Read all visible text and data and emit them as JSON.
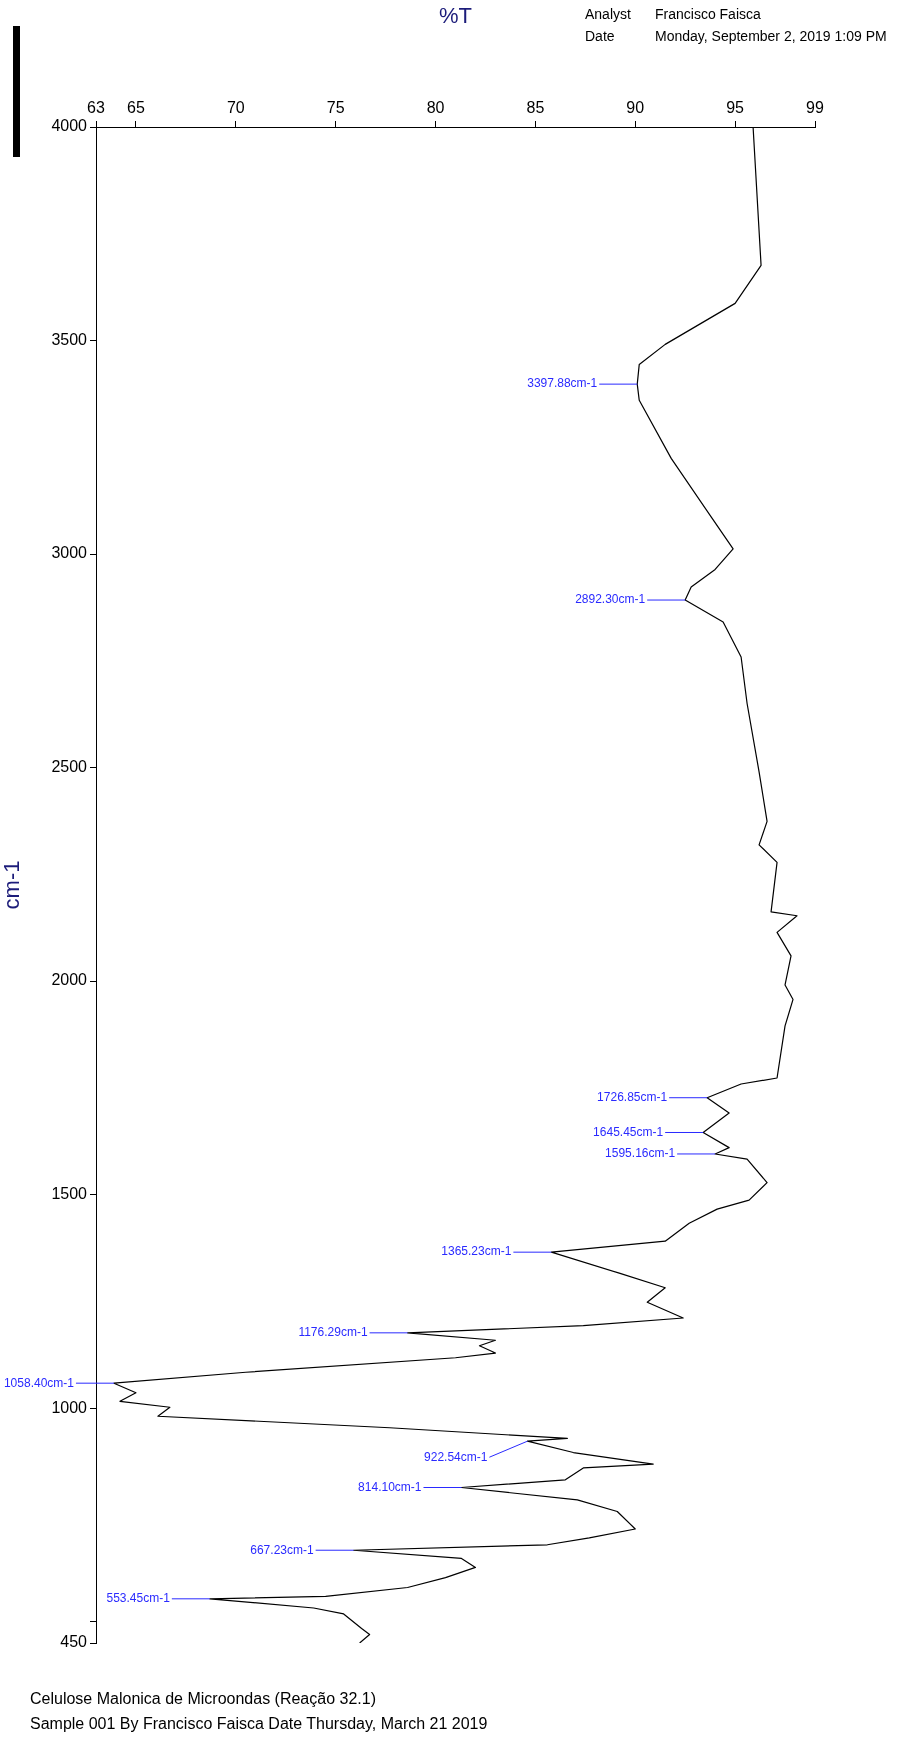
{
  "chart_data": {
    "type": "line",
    "xlabel": "%T",
    "ylabel": "cm-1",
    "x": [
      95.9,
      96.3,
      95.0,
      91.5,
      90.2,
      90.1,
      90.2,
      91.8,
      93.8,
      94.9,
      94.0,
      92.8,
      92.5,
      94.4,
      95.3,
      95.6,
      96.2,
      96.6,
      96.2,
      97.1,
      96.8,
      98.1,
      97.1,
      97.8,
      97.5,
      97.9,
      97.5,
      97.1,
      95.3,
      93.6,
      94.7,
      93.4,
      94.7,
      94.0,
      95.6,
      96.6,
      95.7,
      94.1,
      92.7,
      91.5,
      85.8,
      89.2,
      91.5,
      90.6,
      92.4,
      87.4,
      78.6,
      83.0,
      82.2,
      83.0,
      81.0,
      70.5,
      63.9,
      65.0,
      64.2,
      66.7,
      66.1,
      77.7,
      86.6,
      84.6,
      86.9,
      90.9,
      87.4,
      86.5,
      81.3,
      87.1,
      89.1,
      90.0,
      87.7,
      85.6,
      75.9,
      81.3,
      82.0,
      80.5,
      78.6,
      74.5,
      68.7,
      73.9,
      75.4,
      76.3,
      76.7,
      76.2
    ],
    "values": [
      4000,
      3676,
      3587,
      3491,
      3444,
      3397.88,
      3360,
      3224,
      3087,
      3012,
      2964,
      2923,
      2892.3,
      2841,
      2759,
      2650,
      2490,
      2374,
      2319,
      2278,
      2162,
      2153,
      2114,
      2059,
      1991,
      1957,
      1895,
      1773,
      1759,
      1726.85,
      1691,
      1645.45,
      1610,
      1595.16,
      1583,
      1528,
      1487,
      1466,
      1433,
      1391,
      1365.23,
      1316,
      1282,
      1248,
      1211,
      1193,
      1176.29,
      1159,
      1146,
      1129,
      1118,
      1084,
      1058.4,
      1036,
      1016,
      1002,
      981,
      954,
      929,
      922.54,
      896,
      869,
      860,
      832,
      814.1,
      785,
      758,
      717,
      696,
      680,
      667.23,
      648,
      627,
      603,
      580,
      559,
      553.45,
      532,
      518,
      484,
      470,
      450
    ],
    "color": "#000000",
    "xlim": [
      63,
      99
    ],
    "xticks": [
      63,
      65,
      70,
      75,
      80,
      85,
      90,
      95,
      99
    ],
    "ylim": [
      450,
      4000
    ],
    "yticks": [
      4000,
      3500,
      3000,
      2500,
      2000,
      1500,
      1000,
      {
        "value": 500,
        "label": null
      },
      450
    ],
    "grid": false,
    "legend": false,
    "marker": "none",
    "line_style": "solid",
    "annotations": [
      "Analyst",
      "Francisco Faisca",
      "Date",
      "Monday, September 2, 2019 1:09 PM",
      "Celulose Malonica de Microondas (Reação 32.1)",
      "Sample 001 By Francisco Faisca Date Thursday, March 21 2019",
      {
        "text": "3397.88cm-1",
        "x": 90.1,
        "y": 3397.88
      },
      {
        "text": "2892.30cm-1",
        "x": 92.5,
        "y": 2892.3
      },
      {
        "text": "1726.85cm-1",
        "x": 93.6,
        "y": 1726.85
      },
      {
        "text": "1645.45cm-1",
        "x": 93.4,
        "y": 1645.45
      },
      {
        "text": "1595.16cm-1",
        "x": 94.0,
        "y": 1595.16
      },
      {
        "text": "1365.23cm-1",
        "x": 85.8,
        "y": 1365.23
      },
      {
        "text": "1176.29cm-1",
        "x": 78.6,
        "y": 1176.29
      },
      {
        "text": "1058.40cm-1",
        "x": 63.9,
        "y": 1058.4
      },
      {
        "text": "922.54cm-1",
        "x": 84.6,
        "y": 922.54
      },
      {
        "text": "814.10cm-1",
        "x": 81.3,
        "y": 814.1
      },
      {
        "text": "667.23cm-1",
        "x": 75.9,
        "y": 667.23
      },
      {
        "text": "553.45cm-1",
        "x": 68.7,
        "y": 553.45
      }
    ]
  }
}
